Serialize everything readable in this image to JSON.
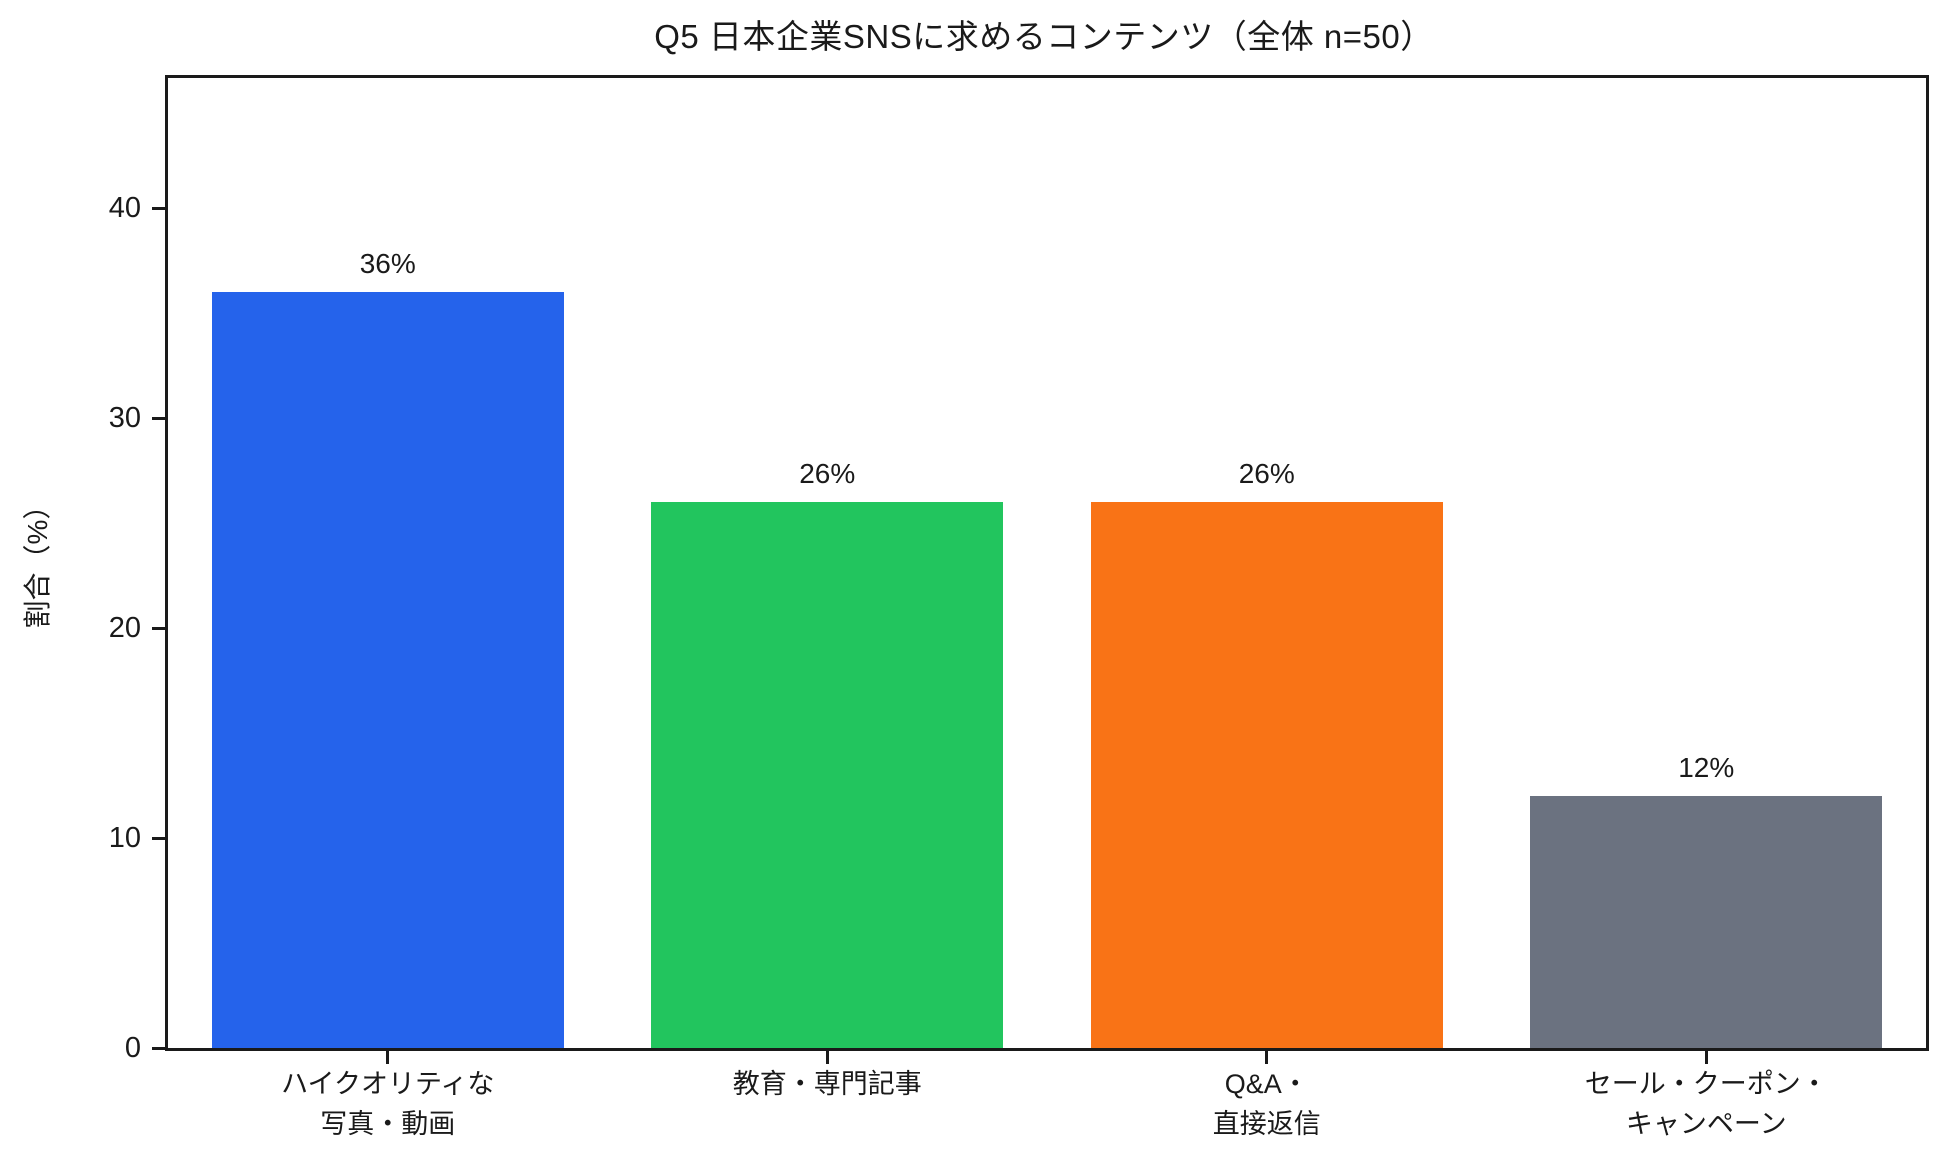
{
  "chart_data": {
    "type": "bar",
    "title": "Q5 日本企業SNSに求めるコンテンツ（全体 n=50）",
    "ylabel": "割合（%）",
    "xlabel": "",
    "categories": [
      "ハイクオリティな\n写真・動画",
      "教育・専門記事",
      "Q&A・\n直接返信",
      "セール・クーポン・\nキャンペーン"
    ],
    "values": [
      36,
      26,
      26,
      12
    ],
    "bar_labels": [
      "36%",
      "26%",
      "26%",
      "12%"
    ],
    "bar_colors": [
      "#2563eb",
      "#22c55e",
      "#f97316",
      "#6b7280"
    ],
    "yticks": [
      0,
      10,
      20,
      30,
      40
    ],
    "ylim": [
      0,
      46.2
    ],
    "grid": false,
    "legend": "none",
    "axis_color": "#1a1a1a",
    "background_color": "#ffffff"
  }
}
